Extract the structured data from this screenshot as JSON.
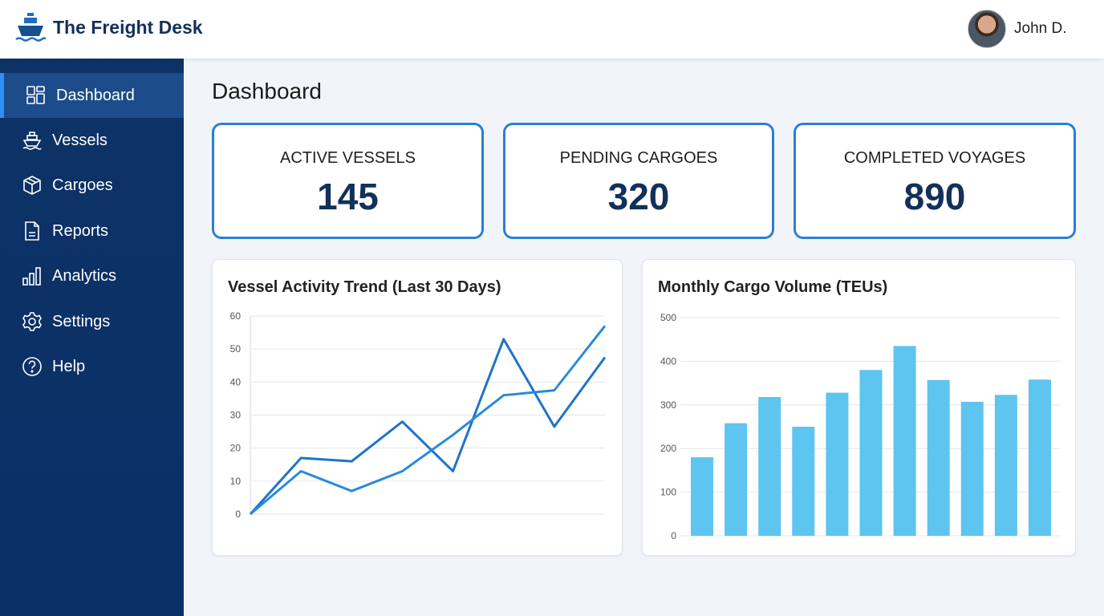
{
  "header": {
    "brand": "The Freight Desk",
    "user": "John D."
  },
  "sidebar": {
    "items": [
      {
        "label": "Dashboard",
        "icon": "dashboard-icon",
        "active": true
      },
      {
        "label": "Vessels",
        "icon": "ship-icon"
      },
      {
        "label": "Cargoes",
        "icon": "box-icon"
      },
      {
        "label": "Reports",
        "icon": "document-icon"
      },
      {
        "label": "Analytics",
        "icon": "bar-chart-icon"
      },
      {
        "label": "Settings",
        "icon": "gear-icon"
      },
      {
        "label": "Help",
        "icon": "help-icon"
      }
    ]
  },
  "main": {
    "title": "Dashboard",
    "stats": [
      {
        "label": "ACTIVE VESSELS",
        "value": "145"
      },
      {
        "label": "PENDING CARGOES",
        "value": "320"
      },
      {
        "label": "COMPLETED VOYAGES",
        "value": "890"
      }
    ]
  },
  "colors": {
    "sidebar": "#0c3266",
    "accent": "#2a7fd8",
    "line1": "#1f74c8",
    "line2": "#2b8ad8",
    "bar": "#5ec4f0"
  },
  "chart_data": [
    {
      "type": "line",
      "title": "Vessel Activity Trend (Last 30 Days)",
      "ylim": [
        0,
        60
      ],
      "yticks": [
        0,
        10,
        20,
        30,
        40,
        50,
        60
      ],
      "grid": true,
      "x": [
        0,
        1,
        2,
        3,
        4,
        5,
        6,
        7
      ],
      "series": [
        {
          "values": [
            0,
            17,
            16,
            28,
            13,
            53,
            26.5,
            47.5
          ]
        },
        {
          "values": [
            0,
            13,
            7,
            13,
            24,
            36,
            37.5,
            57
          ]
        }
      ]
    },
    {
      "type": "bar",
      "title": "Monthly Cargo Volume (TEUs)",
      "ylim": [
        0,
        500
      ],
      "yticks": [
        0,
        100,
        200,
        300,
        400,
        500
      ],
      "grid": true,
      "values": [
        180,
        258,
        318,
        250,
        328,
        380,
        435,
        357,
        307,
        323,
        358
      ]
    }
  ]
}
